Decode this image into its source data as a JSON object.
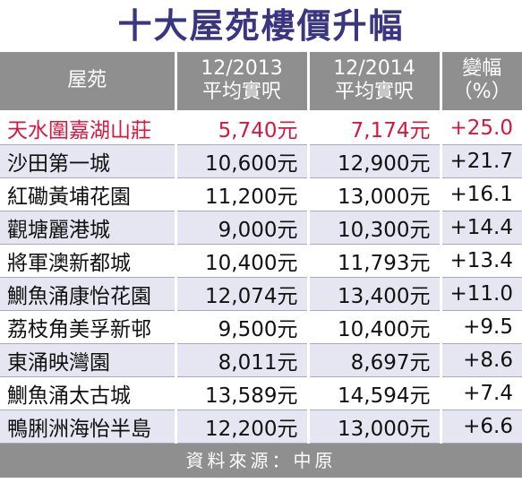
{
  "title": "十大屋苑樓價升幅",
  "headers": {
    "estate": "屋苑",
    "price2013_line1": "12/2013",
    "price2013_line2": "平均實呎",
    "price2014_line1": "12/2014",
    "price2014_line2": "平均實呎",
    "change_line1": "變幅",
    "change_line2": "（%）"
  },
  "rows": [
    {
      "estate": "天水圍嘉湖山莊",
      "p2013": "5,740元",
      "p2014": "7,174元",
      "change": "+25.0",
      "highlight": true
    },
    {
      "estate": "沙田第一城",
      "p2013": "10,600元",
      "p2014": "12,900元",
      "change": "+21.7"
    },
    {
      "estate": "紅磡黃埔花園",
      "p2013": "11,200元",
      "p2014": "13,000元",
      "change": "+16.1"
    },
    {
      "estate": "觀塘麗港城",
      "p2013": "9,000元",
      "p2014": "10,300元",
      "change": "+14.4"
    },
    {
      "estate": "將軍澳新都城",
      "p2013": "10,400元",
      "p2014": "11,793元",
      "change": "+13.4"
    },
    {
      "estate": "鰂魚涌康怡花園",
      "p2013": "12,074元",
      "p2014": "13,400元",
      "change": "+11.0"
    },
    {
      "estate": "荔枝角美孚新邨",
      "p2013": "9,500元",
      "p2014": "10,400元",
      "change": "+9.5"
    },
    {
      "estate": "東涌映灣園",
      "p2013": "8,011元",
      "p2014": "8,697元",
      "change": "+8.6"
    },
    {
      "estate": "鰂魚涌太古城",
      "p2013": "13,589元",
      "p2014": "14,594元",
      "change": "+7.4"
    },
    {
      "estate": "鴨脷洲海怡半島",
      "p2013": "12,200元",
      "p2014": "13,000元",
      "change": "+6.6"
    }
  ],
  "source": "資料來源：中原",
  "colors": {
    "title": "#3a3580",
    "header_bg": "#8f8f8f",
    "highlight": "#d6173f",
    "stripe": "#e6e6f2"
  }
}
